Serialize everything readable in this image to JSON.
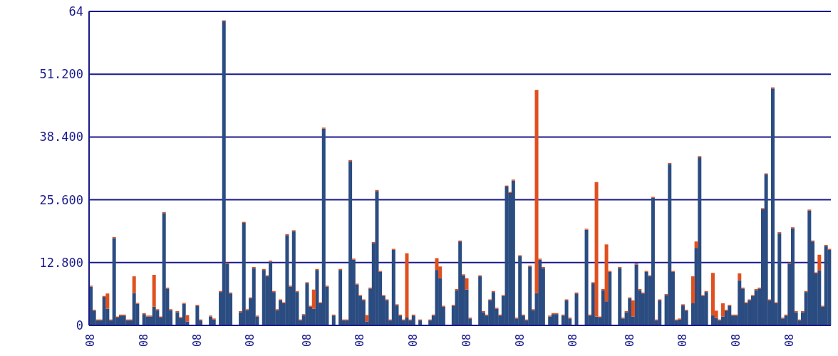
{
  "chart_data": {
    "type": "bar",
    "stacked": true,
    "categories": [
      "08",
      null,
      null,
      null,
      null,
      null,
      null,
      null,
      null,
      null,
      null,
      null,
      null,
      null,
      null,
      null,
      "08",
      null,
      null,
      null,
      null,
      null,
      null,
      null,
      null,
      null,
      null,
      null,
      null,
      null,
      null,
      null,
      "08",
      null,
      null,
      null,
      null,
      null,
      null,
      null,
      null,
      null,
      null,
      null,
      null,
      null,
      null,
      null,
      "08",
      null,
      null,
      null,
      null,
      null,
      null,
      null,
      null,
      null,
      null,
      null,
      null,
      null,
      null,
      null,
      null,
      "08",
      null,
      null,
      null,
      null,
      null,
      null,
      null,
      null,
      null,
      null,
      null,
      null,
      null,
      null,
      null,
      "08",
      null,
      null,
      null,
      null,
      null,
      null,
      null,
      null,
      null,
      null,
      null,
      null,
      null,
      null,
      null,
      "08",
      null,
      null,
      null,
      null,
      null,
      null,
      null,
      null,
      null,
      null,
      null,
      null,
      null,
      null,
      null,
      "08",
      null,
      null,
      null,
      null,
      null,
      null,
      null,
      null,
      null,
      null,
      null,
      null,
      null,
      null,
      null,
      "08",
      null,
      null,
      null,
      null,
      null,
      null,
      null,
      null,
      null,
      null,
      null,
      null,
      null,
      null,
      null,
      "08",
      null,
      null,
      null,
      null,
      null,
      null,
      null,
      null,
      null,
      null,
      null,
      null,
      null,
      null,
      null,
      null,
      "08",
      null,
      null,
      null,
      null,
      null,
      null,
      null,
      null,
      null,
      null,
      null,
      null,
      null,
      null,
      null,
      "08",
      null,
      null,
      null,
      null,
      null,
      null,
      null,
      null,
      null,
      null,
      null,
      null,
      null,
      null,
      null,
      "08",
      null,
      null,
      null,
      null,
      null,
      null,
      null,
      null,
      null,
      null,
      null,
      null,
      null,
      null,
      null,
      "08",
      null,
      null,
      null,
      null,
      null,
      null,
      null,
      null,
      null,
      null,
      null,
      null
    ],
    "series": [
      {
        "color": "#2b4c80",
        "values": [
          7.9,
          3.0,
          1.0,
          1.0,
          5.8,
          3.4,
          1.0,
          17.8,
          1.6,
          2.0,
          2.0,
          1.0,
          1.0,
          6.6,
          4.4,
          0,
          2.3,
          1.8,
          1.8,
          3.8,
          3.1,
          1.6,
          22.9,
          7.5,
          3.1,
          0,
          2.7,
          1.5,
          4.4,
          0.8,
          0,
          0,
          4.0,
          1.0,
          0,
          0,
          1.8,
          1.2,
          0,
          6.8,
          62.0,
          12.6,
          6.5,
          0,
          0,
          2.7,
          20.9,
          3.1,
          5.5,
          11.7,
          1.8,
          0,
          11.3,
          10.0,
          13.0,
          6.8,
          3.1,
          5.1,
          4.5,
          18.4,
          7.9,
          19.2,
          6.8,
          1.0,
          2.1,
          8.6,
          3.8,
          3.4,
          11.3,
          4.5,
          40.1,
          7.9,
          0,
          2.0,
          0,
          11.3,
          1.0,
          1.0,
          33.5,
          13.4,
          8.3,
          6.0,
          5.1,
          0.8,
          7.5,
          16.8,
          27.4,
          10.9,
          6.0,
          5.1,
          1.0,
          15.4,
          4.1,
          2.0,
          1.0,
          1.6,
          1.0,
          2.0,
          0,
          1.0,
          0,
          0,
          1.0,
          2.0,
          11.3,
          9.6,
          3.8,
          0,
          0,
          4.0,
          7.2,
          17.1,
          10.2,
          7.3,
          1.4,
          0,
          0,
          10.0,
          2.7,
          2.0,
          5.1,
          6.8,
          3.4,
          2.0,
          6.0,
          28.3,
          27.0,
          29.5,
          1.4,
          14.1,
          2.0,
          1.0,
          12.0,
          3.1,
          6.6,
          13.4,
          11.7,
          0,
          1.8,
          2.3,
          2.3,
          0,
          2.0,
          5.1,
          1.4,
          0,
          6.5,
          0,
          0,
          19.5,
          2.0,
          8.6,
          1.8,
          1.6,
          7.2,
          4.9,
          10.9,
          0,
          0,
          11.7,
          1.4,
          2.7,
          5.5,
          1.8,
          12.4,
          7.2,
          6.5,
          10.9,
          10.0,
          26.0,
          1.0,
          5.1,
          0,
          6.2,
          32.9,
          10.9,
          1.0,
          1.2,
          4.1,
          3.0,
          0,
          4.5,
          15.8,
          34.3,
          6.0,
          6.8,
          0,
          2.1,
          1.5,
          1.0,
          1.8,
          3.0,
          4.0,
          2.0,
          2.0,
          9.2,
          7.5,
          4.5,
          5.1,
          6.0,
          7.2,
          7.5,
          23.7,
          30.8,
          5.1,
          48.3,
          4.5,
          18.8,
          1.4,
          2.0,
          12.6,
          19.8,
          2.7,
          1.0,
          2.7,
          6.8,
          23.4,
          17.1,
          10.6,
          11.2,
          3.8,
          16.2,
          15.4
        ]
      },
      {
        "color": "#e0501e",
        "values": [
          0.2,
          0.2,
          0.2,
          0.2,
          0.2,
          3.1,
          0.2,
          0.2,
          0.2,
          0.2,
          0.2,
          0.2,
          0.2,
          3.4,
          0.2,
          0,
          0.2,
          0.2,
          0.2,
          6.5,
          0.2,
          0.2,
          0.2,
          0.2,
          0.2,
          0,
          0.2,
          0.2,
          0.2,
          1.3,
          0,
          0,
          0.2,
          0.2,
          0,
          0,
          0.2,
          0.2,
          0,
          0.2,
          0.2,
          0.2,
          0.2,
          0,
          0,
          0.2,
          0.2,
          0.2,
          0.2,
          0.2,
          0.2,
          0,
          0.2,
          0.2,
          0.2,
          0.2,
          0.2,
          0.2,
          0.2,
          0.2,
          0.2,
          0.2,
          0.2,
          0.2,
          0.2,
          0.2,
          0.2,
          3.9,
          0.2,
          0.2,
          0.2,
          0.2,
          0,
          0.2,
          0,
          0.2,
          0.2,
          0.2,
          0.2,
          0.2,
          0.2,
          0.2,
          0.2,
          1.3,
          0.2,
          0.2,
          0.2,
          0.2,
          0.2,
          0.2,
          0.2,
          0.2,
          0.2,
          0.2,
          0.2,
          13.1,
          0.2,
          0.2,
          0,
          0.2,
          0,
          0,
          0.2,
          0.2,
          2.4,
          2.4,
          0.2,
          0,
          0,
          0.2,
          0.2,
          0.2,
          0.2,
          2.3,
          0.2,
          0,
          0,
          0.2,
          0.2,
          0.2,
          0.2,
          0.2,
          0.2,
          0.2,
          0.2,
          0.2,
          0.2,
          0.2,
          0.2,
          0.2,
          0.2,
          0.2,
          0.2,
          0.2,
          41.4,
          0.2,
          0.2,
          0,
          0.2,
          0.2,
          0.2,
          0,
          0.2,
          0.2,
          0.2,
          0,
          0.2,
          0,
          0,
          0.2,
          0.2,
          0.2,
          27.4,
          0.2,
          0.2,
          11.6,
          0.2,
          0,
          0,
          0.2,
          0.2,
          0.2,
          0.2,
          3.3,
          0.2,
          0.2,
          0.2,
          0.2,
          0.2,
          0.2,
          0.2,
          0.2,
          0,
          0.2,
          0.2,
          0.2,
          0.2,
          0.2,
          0.2,
          0.2,
          0,
          5.5,
          1.3,
          0.2,
          0.2,
          0.2,
          0,
          8.6,
          1.5,
          0.2,
          2.7,
          0.2,
          0.2,
          0.2,
          0.2,
          1.4,
          0.2,
          0.2,
          0.2,
          0.2,
          0.2,
          0.2,
          0.2,
          0.2,
          0.2,
          0.2,
          0.2,
          0.2,
          0.2,
          0.2,
          0.2,
          0.2,
          0.2,
          0.2,
          0.2,
          0.2,
          0.2,
          0.2,
          0.2,
          3.2,
          0.2,
          0.2,
          0.2
        ]
      }
    ],
    "ylim": [
      0,
      64
    ],
    "yticks": [
      0,
      {
        "value": 12.8,
        "label": "12.800"
      },
      {
        "value": 25.6,
        "label": "25.600"
      },
      {
        "value": 38.4,
        "label": "38.400"
      },
      {
        "value": 51.2,
        "label": "51.200"
      },
      64
    ],
    "grid": "y"
  }
}
